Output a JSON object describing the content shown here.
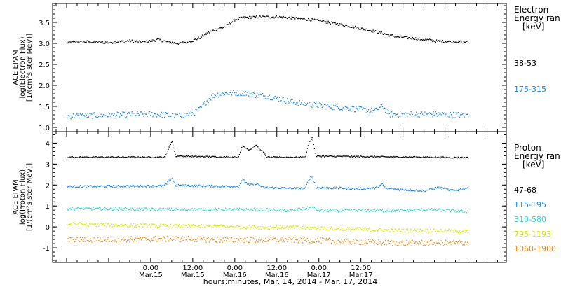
{
  "chart_data": [
    {
      "panel": "electron",
      "type": "scatter",
      "ylabel_lines": [
        "ACE EPAM",
        "log(Electron Flux)",
        "[1/(cm²s ster MeV)]"
      ],
      "ylim": [
        0.9,
        3.95
      ],
      "yticks": [
        {
          "value": 1.0,
          "label": "1.0"
        },
        {
          "value": 1.5,
          "label": "1.5"
        },
        {
          "value": 2.0,
          "label": "2.0"
        },
        {
          "value": 2.5,
          "label": "2.5"
        },
        {
          "value": 3.0,
          "label": "3.0"
        },
        {
          "value": 3.5,
          "label": "3.5"
        }
      ],
      "legend_title": [
        "Electron",
        "Energy ran",
        "[keV]"
      ],
      "series": [
        {
          "name": "38-53",
          "color": "#000000",
          "profile": [
            [
              -24.0,
              3.03
            ],
            [
              -18,
              3.05
            ],
            [
              -12,
              3.03
            ],
            [
              -6,
              3.07
            ],
            [
              -2,
              3.04
            ],
            [
              2,
              3.1
            ],
            [
              5,
              3.04
            ],
            [
              8,
              3.01
            ],
            [
              10,
              3.04
            ],
            [
              12,
              3.08
            ],
            [
              14,
              3.15
            ],
            [
              16,
              3.25
            ],
            [
              18,
              3.33
            ],
            [
              21,
              3.4
            ],
            [
              24,
              3.58
            ],
            [
              26,
              3.62
            ],
            [
              30,
              3.64
            ],
            [
              36,
              3.64
            ],
            [
              40,
              3.62
            ],
            [
              46,
              3.57
            ],
            [
              52,
              3.49
            ],
            [
              58,
              3.4
            ],
            [
              64,
              3.29
            ],
            [
              70,
              3.17
            ],
            [
              76,
              3.12
            ],
            [
              82,
              3.06
            ],
            [
              87,
              3.05
            ],
            [
              90.5,
              3.04
            ]
          ],
          "noise": 0.03
        },
        {
          "name": "175-315",
          "color": "#1f87e0",
          "profile": [
            [
              -24.0,
              1.28
            ],
            [
              -12,
              1.3
            ],
            [
              0,
              1.33
            ],
            [
              8,
              1.28
            ],
            [
              12,
              1.35
            ],
            [
              14,
              1.45
            ],
            [
              16,
              1.65
            ],
            [
              18,
              1.78
            ],
            [
              21,
              1.82
            ],
            [
              26,
              1.84
            ],
            [
              30,
              1.78
            ],
            [
              34,
              1.74
            ],
            [
              40,
              1.62
            ],
            [
              46,
              1.55
            ],
            [
              52,
              1.5
            ],
            [
              58,
              1.45
            ],
            [
              64,
              1.4
            ],
            [
              66,
              1.52
            ],
            [
              68,
              1.32
            ],
            [
              76,
              1.33
            ],
            [
              82,
              1.32
            ],
            [
              90.5,
              1.3
            ]
          ],
          "noise": 0.07
        }
      ]
    },
    {
      "panel": "proton",
      "type": "scatter",
      "ylabel_lines": [
        "ACE EPAM",
        "log(Proton Flux)",
        "[1/(cm²s ster MeV)]"
      ],
      "ylim": [
        -1.7,
        4.55
      ],
      "yticks": [
        {
          "value": -1,
          "label": "-1"
        },
        {
          "value": 0,
          "label": "0"
        },
        {
          "value": 1,
          "label": "1"
        },
        {
          "value": 2,
          "label": "2"
        },
        {
          "value": 3,
          "label": "3"
        },
        {
          "value": 4,
          "label": "4"
        }
      ],
      "legend_title": [
        "Proton",
        "Energy ran",
        "[keV]"
      ],
      "series": [
        {
          "name": "47-68",
          "color": "#000000",
          "profile": [
            [
              -24.0,
              3.35
            ],
            [
              4,
              3.35
            ],
            [
              5,
              3.8
            ],
            [
              6,
              4.1
            ],
            [
              7,
              3.4
            ],
            [
              25,
              3.35
            ],
            [
              26,
              3.9
            ],
            [
              28,
              3.7
            ],
            [
              30,
              3.9
            ],
            [
              32,
              3.6
            ],
            [
              33,
              3.35
            ],
            [
              44,
              3.35
            ],
            [
              45,
              4.0
            ],
            [
              46,
              4.3
            ],
            [
              47,
              3.4
            ],
            [
              90.5,
              3.33
            ]
          ],
          "noise": 0.03
        },
        {
          "name": "115-195",
          "color": "#1f87e0",
          "profile": [
            [
              -24.0,
              1.95
            ],
            [
              4,
              1.98
            ],
            [
              5,
              2.2
            ],
            [
              6,
              2.35
            ],
            [
              7,
              2.0
            ],
            [
              25,
              1.95
            ],
            [
              26,
              2.3
            ],
            [
              28,
              2.0
            ],
            [
              30,
              2.1
            ],
            [
              32,
              1.9
            ],
            [
              44,
              1.85
            ],
            [
              45,
              2.3
            ],
            [
              46,
              2.45
            ],
            [
              47,
              1.9
            ],
            [
              60,
              1.85
            ],
            [
              64,
              1.88
            ],
            [
              66,
              2.05
            ],
            [
              67,
              1.85
            ],
            [
              72,
              1.8
            ],
            [
              78,
              1.75
            ],
            [
              82,
              1.9
            ],
            [
              86,
              1.75
            ],
            [
              88,
              1.8
            ],
            [
              90.5,
              1.9
            ]
          ],
          "noise": 0.05
        },
        {
          "name": "310-580",
          "color": "#2fd8c8",
          "profile": [
            [
              -24.0,
              0.9
            ],
            [
              10,
              0.85
            ],
            [
              20,
              0.85
            ],
            [
              30,
              0.85
            ],
            [
              40,
              0.8
            ],
            [
              46,
              0.95
            ],
            [
              48,
              0.8
            ],
            [
              60,
              0.8
            ],
            [
              70,
              0.8
            ],
            [
              80,
              0.85
            ],
            [
              90.5,
              0.75
            ]
          ],
          "noise": 0.07
        },
        {
          "name": "795-1193",
          "color": "#d7e600",
          "profile": [
            [
              -24.0,
              0.15
            ],
            [
              10,
              0.05
            ],
            [
              20,
              0.05
            ],
            [
              30,
              0.0
            ],
            [
              40,
              0.0
            ],
            [
              50,
              -0.05
            ],
            [
              60,
              -0.1
            ],
            [
              70,
              -0.15
            ],
            [
              80,
              -0.15
            ],
            [
              90.5,
              -0.2
            ]
          ],
          "noise": 0.09
        },
        {
          "name": "1060-1900",
          "color": "#e88a1a",
          "profile": [
            [
              -24.0,
              -0.6
            ],
            [
              10,
              -0.55
            ],
            [
              20,
              -0.6
            ],
            [
              30,
              -0.6
            ],
            [
              40,
              -0.6
            ],
            [
              50,
              -0.65
            ],
            [
              60,
              -0.7
            ],
            [
              70,
              -0.75
            ],
            [
              80,
              -0.75
            ],
            [
              90.5,
              -0.75
            ]
          ],
          "noise": 0.14
        }
      ]
    }
  ],
  "x_axis": {
    "unit": "hours since 0:00 Mar.15, 2014",
    "range": [
      -28,
      101.5
    ],
    "data_range": [
      -24.0,
      90.5
    ],
    "ticks": [
      {
        "value": 0,
        "line1": "0:00",
        "line2": "Mar.15"
      },
      {
        "value": 12,
        "line1": "12:00",
        "line2": "Mar.15"
      },
      {
        "value": 24,
        "line1": "0:00",
        "line2": "Mar.16"
      },
      {
        "value": 36,
        "line1": "12:00",
        "line2": "Mar.16"
      },
      {
        "value": 48,
        "line1": "0:00",
        "line2": "Mar.17"
      },
      {
        "value": 60,
        "line1": "12:00",
        "line2": "Mar.17"
      }
    ],
    "minor_step": 3,
    "label": "hours:minutes, Mar. 14, 2014 - Mar. 17, 2014"
  }
}
